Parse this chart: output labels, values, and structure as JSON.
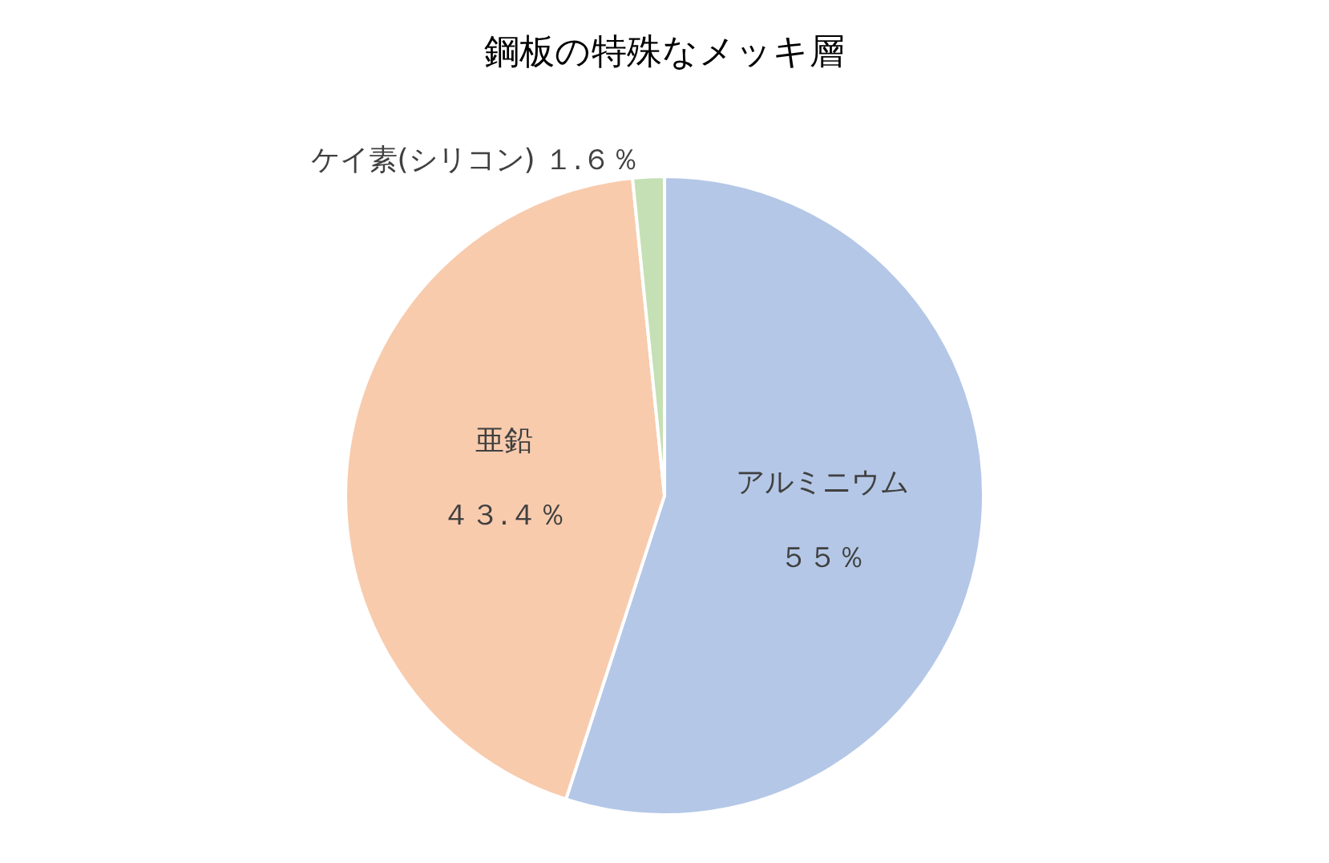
{
  "chart_data": {
    "type": "pie",
    "title": "鋼板の特殊なメッキ層",
    "categories": [
      "アルミニウム",
      "亜鉛",
      "ケイ素(シリコン)"
    ],
    "values": [
      55,
      43.4,
      1.6
    ],
    "value_labels": [
      "５５％",
      "４３.４％",
      "１.６％"
    ],
    "colors": [
      "#b4c7e7",
      "#f8cbad",
      "#c5e0b4"
    ],
    "legend": false
  }
}
